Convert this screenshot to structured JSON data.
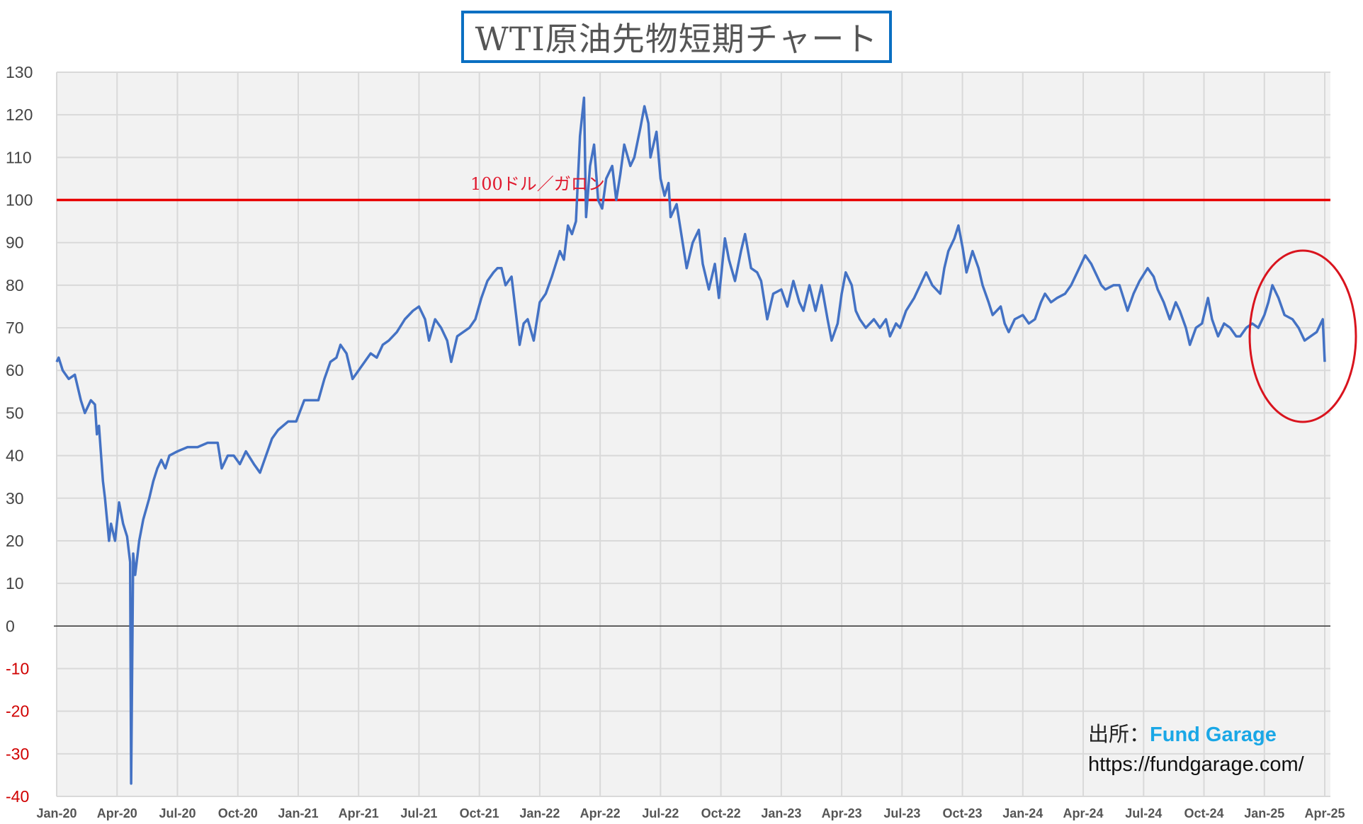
{
  "chart_data": {
    "type": "line",
    "title": "WTI原油先物短期チャート",
    "xlabel": "",
    "ylabel": "",
    "ylim": [
      -40,
      130
    ],
    "yticks": [
      "130",
      "120",
      "110",
      "100",
      "90",
      "80",
      "70",
      "60",
      "50",
      "40",
      "30",
      "20",
      "10",
      "0",
      "-10",
      "-20",
      "-30",
      "-40"
    ],
    "ytick_values": [
      130,
      120,
      110,
      100,
      90,
      80,
      70,
      60,
      50,
      40,
      30,
      20,
      10,
      0,
      -10,
      -20,
      -30,
      -40
    ],
    "xlim_months_since_jan2020": [
      0,
      63
    ],
    "xticks": [
      "Jan-20",
      "Apr-20",
      "Jul-20",
      "Oct-20",
      "Jan-21",
      "Apr-21",
      "Jul-21",
      "Oct-21",
      "Jan-22",
      "Apr-22",
      "Jul-22",
      "Oct-22",
      "Jan-23",
      "Apr-23",
      "Jul-23",
      "Oct-23",
      "Jan-24",
      "Apr-24",
      "Jul-24",
      "Oct-24",
      "Jan-25",
      "Apr-25"
    ],
    "grid": true,
    "reference_line": {
      "value": 100,
      "label": "100ドル／ガロン",
      "color": "#e80000"
    },
    "highlight": {
      "shape": "ellipse",
      "around": "Jan-25 to Apr-25",
      "color": "#d9141e"
    },
    "series": [
      {
        "name": "WTI",
        "color": "#4472c4",
        "points": [
          [
            0,
            62
          ],
          [
            0.1,
            63
          ],
          [
            0.3,
            60
          ],
          [
            0.6,
            58
          ],
          [
            0.9,
            59
          ],
          [
            1.2,
            53
          ],
          [
            1.4,
            50
          ],
          [
            1.7,
            53
          ],
          [
            1.9,
            52
          ],
          [
            2.0,
            45
          ],
          [
            2.1,
            47
          ],
          [
            2.3,
            34
          ],
          [
            2.4,
            30
          ],
          [
            2.6,
            20
          ],
          [
            2.7,
            24
          ],
          [
            2.9,
            20
          ],
          [
            3.1,
            29
          ],
          [
            3.3,
            24
          ],
          [
            3.5,
            21
          ],
          [
            3.65,
            15
          ],
          [
            3.7,
            -37
          ],
          [
            3.8,
            17
          ],
          [
            3.9,
            12
          ],
          [
            4.1,
            20
          ],
          [
            4.3,
            25
          ],
          [
            4.6,
            30
          ],
          [
            4.8,
            34
          ],
          [
            5.0,
            37
          ],
          [
            5.2,
            39
          ],
          [
            5.4,
            37
          ],
          [
            5.6,
            40
          ],
          [
            6.0,
            41
          ],
          [
            6.5,
            42
          ],
          [
            7.0,
            42
          ],
          [
            7.5,
            43
          ],
          [
            7.8,
            43
          ],
          [
            8.0,
            43
          ],
          [
            8.2,
            37
          ],
          [
            8.5,
            40
          ],
          [
            8.8,
            40
          ],
          [
            9.1,
            38
          ],
          [
            9.4,
            41
          ],
          [
            9.8,
            38
          ],
          [
            10.1,
            36
          ],
          [
            10.4,
            40
          ],
          [
            10.7,
            44
          ],
          [
            11.0,
            46
          ],
          [
            11.5,
            48
          ],
          [
            11.9,
            48
          ],
          [
            12.3,
            53
          ],
          [
            12.6,
            53
          ],
          [
            13.0,
            53
          ],
          [
            13.3,
            58
          ],
          [
            13.6,
            62
          ],
          [
            13.9,
            63
          ],
          [
            14.1,
            66
          ],
          [
            14.4,
            64
          ],
          [
            14.7,
            58
          ],
          [
            15.0,
            60
          ],
          [
            15.3,
            62
          ],
          [
            15.6,
            64
          ],
          [
            15.9,
            63
          ],
          [
            16.2,
            66
          ],
          [
            16.5,
            67
          ],
          [
            16.9,
            69
          ],
          [
            17.3,
            72
          ],
          [
            17.7,
            74
          ],
          [
            18.0,
            75
          ],
          [
            18.3,
            72
          ],
          [
            18.5,
            67
          ],
          [
            18.8,
            72
          ],
          [
            19.1,
            70
          ],
          [
            19.4,
            67
          ],
          [
            19.6,
            62
          ],
          [
            19.9,
            68
          ],
          [
            20.2,
            69
          ],
          [
            20.5,
            70
          ],
          [
            20.8,
            72
          ],
          [
            21.1,
            77
          ],
          [
            21.4,
            81
          ],
          [
            21.7,
            83
          ],
          [
            21.9,
            84
          ],
          [
            22.1,
            84
          ],
          [
            22.3,
            80
          ],
          [
            22.6,
            82
          ],
          [
            22.8,
            74
          ],
          [
            23.0,
            66
          ],
          [
            23.2,
            71
          ],
          [
            23.4,
            72
          ],
          [
            23.7,
            67
          ],
          [
            24.0,
            76
          ],
          [
            24.3,
            78
          ],
          [
            24.6,
            82
          ],
          [
            25.0,
            88
          ],
          [
            25.2,
            86
          ],
          [
            25.4,
            94
          ],
          [
            25.6,
            92
          ],
          [
            25.8,
            95
          ],
          [
            26.0,
            115
          ],
          [
            26.2,
            124
          ],
          [
            26.3,
            96
          ],
          [
            26.5,
            108
          ],
          [
            26.7,
            113
          ],
          [
            26.9,
            100
          ],
          [
            27.1,
            98
          ],
          [
            27.3,
            105
          ],
          [
            27.6,
            108
          ],
          [
            27.8,
            100
          ],
          [
            28.0,
            106
          ],
          [
            28.2,
            113
          ],
          [
            28.5,
            108
          ],
          [
            28.7,
            110
          ],
          [
            29.0,
            117
          ],
          [
            29.2,
            122
          ],
          [
            29.4,
            118
          ],
          [
            29.5,
            110
          ],
          [
            29.8,
            116
          ],
          [
            30.0,
            105
          ],
          [
            30.2,
            101
          ],
          [
            30.4,
            104
          ],
          [
            30.5,
            96
          ],
          [
            30.8,
            99
          ],
          [
            31.1,
            90
          ],
          [
            31.3,
            84
          ],
          [
            31.6,
            90
          ],
          [
            31.9,
            93
          ],
          [
            32.1,
            85
          ],
          [
            32.4,
            79
          ],
          [
            32.7,
            85
          ],
          [
            32.9,
            77
          ],
          [
            33.2,
            91
          ],
          [
            33.4,
            86
          ],
          [
            33.7,
            81
          ],
          [
            34.0,
            88
          ],
          [
            34.2,
            92
          ],
          [
            34.5,
            84
          ],
          [
            34.8,
            83
          ],
          [
            35.0,
            81
          ],
          [
            35.3,
            72
          ],
          [
            35.6,
            78
          ],
          [
            36.0,
            79
          ],
          [
            36.3,
            75
          ],
          [
            36.6,
            81
          ],
          [
            36.9,
            76
          ],
          [
            37.1,
            74
          ],
          [
            37.4,
            80
          ],
          [
            37.7,
            74
          ],
          [
            38.0,
            80
          ],
          [
            38.3,
            72
          ],
          [
            38.5,
            67
          ],
          [
            38.8,
            71
          ],
          [
            39.0,
            78
          ],
          [
            39.2,
            83
          ],
          [
            39.5,
            80
          ],
          [
            39.7,
            74
          ],
          [
            39.9,
            72
          ],
          [
            40.2,
            70
          ],
          [
            40.6,
            72
          ],
          [
            40.9,
            70
          ],
          [
            41.2,
            72
          ],
          [
            41.4,
            68
          ],
          [
            41.7,
            71
          ],
          [
            41.9,
            70
          ],
          [
            42.2,
            74
          ],
          [
            42.6,
            77
          ],
          [
            42.9,
            80
          ],
          [
            43.2,
            83
          ],
          [
            43.5,
            80
          ],
          [
            43.9,
            78
          ],
          [
            44.1,
            84
          ],
          [
            44.3,
            88
          ],
          [
            44.6,
            91
          ],
          [
            44.8,
            94
          ],
          [
            45.0,
            89
          ],
          [
            45.2,
            83
          ],
          [
            45.5,
            88
          ],
          [
            45.8,
            84
          ],
          [
            46.0,
            80
          ],
          [
            46.3,
            76
          ],
          [
            46.5,
            73
          ],
          [
            46.9,
            75
          ],
          [
            47.1,
            71
          ],
          [
            47.3,
            69
          ],
          [
            47.6,
            72
          ],
          [
            48.0,
            73
          ],
          [
            48.3,
            71
          ],
          [
            48.6,
            72
          ],
          [
            48.9,
            76
          ],
          [
            49.1,
            78
          ],
          [
            49.4,
            76
          ],
          [
            49.7,
            77
          ],
          [
            50.1,
            78
          ],
          [
            50.4,
            80
          ],
          [
            50.8,
            84
          ],
          [
            51.1,
            87
          ],
          [
            51.4,
            85
          ],
          [
            51.7,
            82
          ],
          [
            51.9,
            80
          ],
          [
            52.1,
            79
          ],
          [
            52.5,
            80
          ],
          [
            52.8,
            80
          ],
          [
            53.0,
            77
          ],
          [
            53.2,
            74
          ],
          [
            53.5,
            78
          ],
          [
            53.8,
            81
          ],
          [
            54.2,
            84
          ],
          [
            54.5,
            82
          ],
          [
            54.7,
            79
          ],
          [
            55.0,
            76
          ],
          [
            55.3,
            72
          ],
          [
            55.6,
            76
          ],
          [
            55.8,
            74
          ],
          [
            56.1,
            70
          ],
          [
            56.3,
            66
          ],
          [
            56.6,
            70
          ],
          [
            56.9,
            71
          ],
          [
            57.2,
            77
          ],
          [
            57.4,
            72
          ],
          [
            57.7,
            68
          ],
          [
            58.0,
            71
          ],
          [
            58.3,
            70
          ],
          [
            58.6,
            68
          ],
          [
            58.8,
            68
          ],
          [
            59.1,
            70
          ],
          [
            59.4,
            71
          ],
          [
            59.7,
            70
          ],
          [
            60.0,
            73
          ],
          [
            60.2,
            76
          ],
          [
            60.4,
            80
          ],
          [
            60.7,
            77
          ],
          [
            61.0,
            73
          ],
          [
            61.4,
            72
          ],
          [
            61.7,
            70
          ],
          [
            62.0,
            67
          ],
          [
            62.3,
            68
          ],
          [
            62.6,
            69
          ],
          [
            62.9,
            72
          ],
          [
            63.0,
            62
          ]
        ]
      }
    ]
  },
  "source": {
    "label": "出所：",
    "brand": "Fund Garage",
    "url": "https://fundgarage.com/"
  }
}
